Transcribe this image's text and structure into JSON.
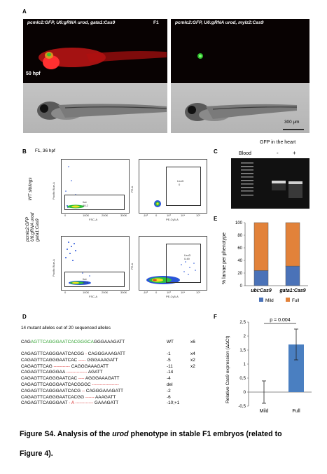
{
  "panels": {
    "A": "A",
    "B": "B",
    "C": "C",
    "D": "D",
    "E": "E",
    "F": "F"
  },
  "panel_a": {
    "left_title": "pcmlc2:GFP, U6:gRNA urod, gata1:Cas9",
    "gen": "F1",
    "right_title": "pcmlc2:GFP, U6:gRNA urod, mylz2:Cas9",
    "hpf": "50 hpf",
    "scale": "300 μm"
  },
  "panel_b": {
    "title": "F1, 36 hpf",
    "row1_label": "WT siblings",
    "row2_label_1": "pcmlc2:GFP",
    "row2_label_2": "U6:gRNA urod",
    "row2_label_3": "gata1:Cas9",
    "fsc": "FSC-A",
    "pacific": "Pacific Blue-A",
    "pe": "PE-A",
    "pecy": "PE-Cy5-A",
    "gate_live": "live",
    "gate_urod": "UroD",
    "wt_live": "98.2",
    "wt_urod": "0",
    "mut_live": "60.9",
    "mut_urod": "0.49",
    "ticks_lin": [
      "0",
      "100K",
      "200K",
      "300K"
    ],
    "ticks_log": [
      "-10³",
      "0",
      "10³",
      "10⁴",
      "10⁵"
    ]
  },
  "panel_c": {
    "title": "GFP in the heart",
    "blood": "Blood",
    "minus": "-",
    "plus": "+"
  },
  "chart_e": {
    "type": "bar",
    "stacked": true,
    "categories": [
      "ubi:Cas9",
      "gata1:Cas9"
    ],
    "series": [
      {
        "name": "Mild",
        "values": [
          24,
          31
        ],
        "color": "#4a72b8"
      },
      {
        "name": "Full",
        "values": [
          76,
          69
        ],
        "color": "#e2823a"
      }
    ],
    "ylabel": "% larvae per phenotype",
    "ylim": [
      0,
      100
    ],
    "yticks": [
      "0",
      "20",
      "40",
      "60",
      "80",
      "100"
    ],
    "legend": [
      "Mild",
      "Full"
    ]
  },
  "chart_f": {
    "type": "bar",
    "categories": [
      "Mild",
      "Full"
    ],
    "values": [
      0,
      1.7
    ],
    "errors": [
      0.4,
      0.55
    ],
    "ylabel": "Relative Cas9 expression (ΔΔCt)",
    "ylim": [
      -0.5,
      2.5
    ],
    "yticks": [
      "-0,5",
      "0",
      "0,5",
      "1",
      "1,5",
      "2",
      "2,5"
    ],
    "pvalue": "p = 0.004",
    "bar_color": "#4a7fc1"
  },
  "panel_d": {
    "header": "14 mutant alleles out of 20 sequenced alleles",
    "wt": {
      "pre": "CAG",
      "green": "AGTTCAGGGAATCACGGGCA",
      "post": "GGGAAAGATT",
      "val": "WT",
      "count": "x6"
    },
    "rows": [
      {
        "a": "CAGAGTTCAGGGAATCACGG",
        "d": " - ",
        "b": "CAGGGAAAGATT",
        "val": "-1",
        "count": "x4"
      },
      {
        "a": "CAGAGTTCAGGGAATCAC",
        "d": " ----- ",
        "b": "GGGAAAGATT",
        "val": "-5",
        "count": "x2"
      },
      {
        "a": "CAGAGTTCAG",
        "d": " ----------- ",
        "b": "CAGGGAAAGATT",
        "val": "-11",
        "count": "x2"
      },
      {
        "a": "CAGAGTTCAGGGAA",
        "d": " -------------- ",
        "b": "AGATT",
        "val": "-14",
        "count": ""
      },
      {
        "a": "CAGAGTTCAGGGAATCAC",
        "d": " ---- ",
        "b": "AGGGAAAGATT",
        "val": "-4",
        "count": ""
      },
      {
        "a": "CAGAGTTCAGGGAATCACGGGC",
        "d": " ------------------ ",
        "b": "",
        "val": "del",
        "count": ""
      },
      {
        "a": "CAGAGTTCAGGGAATCACG",
        "d": " -- ",
        "b": "CAGGGAAAGATT",
        "val": "-2",
        "count": ""
      },
      {
        "a": "CAGAGTTCAGGGAATCACGG",
        "d": " ------ ",
        "b": "AAAGATT",
        "val": "-6",
        "count": ""
      },
      {
        "a": "CAGAGTTCAGGGAAT",
        "d": " - A ------------ ",
        "b": "GAAAGATT",
        "val": "-10;+1",
        "count": ""
      }
    ]
  },
  "caption": {
    "line1_pre": "Figure S4. Analysis of the ",
    "line1_em": "urod",
    "line1_post": " phenotype in stable F1 embryos (related to",
    "line2": "Figure 4)."
  }
}
